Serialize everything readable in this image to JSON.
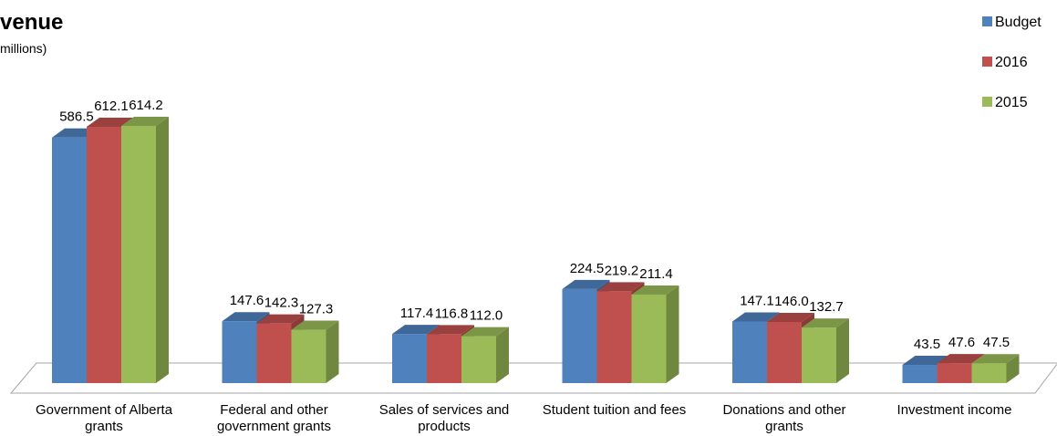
{
  "chart_data": {
    "type": "bar3d",
    "title": "venue",
    "subtitle": "millions)",
    "categories": [
      "Government of Alberta grants",
      "Federal and other government grants",
      "Sales of services and products",
      "Student tuition and fees",
      "Donations and other grants",
      "Investment income"
    ],
    "series": [
      {
        "name": "Budget",
        "color": "#4f81bd",
        "values": [
          586.5,
          147.6,
          117.4,
          224.5,
          147.1,
          43.5
        ],
        "value_labels": [
          "586.5",
          "147.6",
          "117.4",
          "224.5",
          "147.1",
          "43.5"
        ]
      },
      {
        "name": "2016",
        "color": "#c0504d",
        "values": [
          612.1,
          142.3,
          116.8,
          219.2,
          146.0,
          47.6
        ],
        "value_labels": [
          "612.1",
          "142.3",
          "116.8",
          "219.2",
          "146.0",
          "47.6"
        ]
      },
      {
        "name": "2015",
        "color": "#9bbb59",
        "values": [
          614.2,
          127.3,
          112.0,
          211.4,
          132.7,
          47.5
        ],
        "value_labels": [
          "614.2",
          "127.3",
          "112.0",
          "211.4",
          "132.7",
          "47.5"
        ]
      }
    ],
    "legend": "top-right"
  }
}
